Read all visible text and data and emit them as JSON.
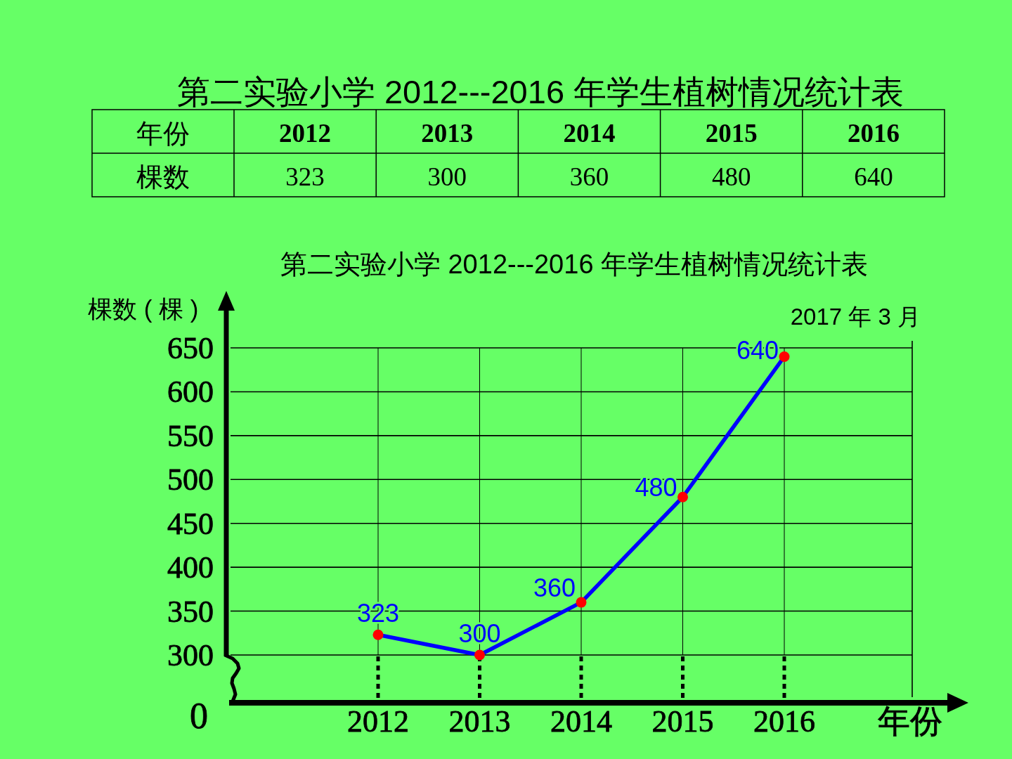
{
  "chart_data": {
    "type": "line",
    "title": "第二实验小学 2012---2016 年学生植树情况统计表",
    "subtitle": "第二实验小学 2012---2016 年学生植树情况统计表",
    "xlabel": "年份",
    "ylabel": "棵数 ( 棵 )",
    "annotations": [
      "2017 年 3 月",
      "0",
      "年份",
      "棵数",
      "323",
      "300",
      "360",
      "480",
      "640"
    ],
    "categories": [
      "2012",
      "2013",
      "2014",
      "2015",
      "2016"
    ],
    "series": [
      {
        "color": "#0000ff",
        "colors": [
          "#ff0000",
          "#ff0000",
          "#ff0000",
          "#ff0000",
          "#ff0000"
        ],
        "values": [
          323,
          300,
          360,
          480,
          640
        ]
      }
    ],
    "ylim": [
      300,
      650
    ],
    "yticks": [
      300,
      350,
      400,
      450,
      500,
      550,
      600,
      650
    ],
    "grid": true,
    "marker": "circle",
    "line_style": "solid",
    "data_labels": true
  }
}
